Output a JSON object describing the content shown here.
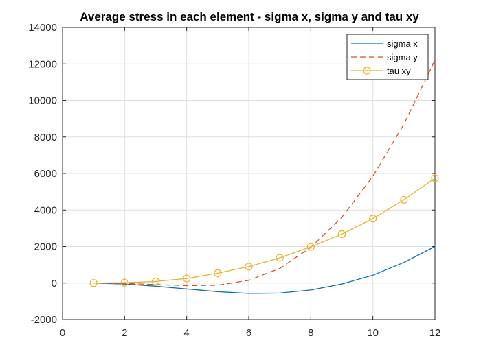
{
  "chart_data": {
    "type": "line",
    "title": "Average stress in each element - sigma x, sigma y and tau xy",
    "xlabel": "",
    "ylabel": "",
    "xlim": [
      0,
      12
    ],
    "ylim": [
      -2000,
      14000
    ],
    "xticks": [
      0,
      2,
      4,
      6,
      8,
      10,
      12
    ],
    "yticks": [
      -2000,
      0,
      2000,
      4000,
      6000,
      8000,
      10000,
      12000,
      14000
    ],
    "xtick_labels": [
      "0",
      "2",
      "4",
      "6",
      "8",
      "10",
      "12"
    ],
    "ytick_labels": [
      "-2000",
      "0",
      "2000",
      "4000",
      "6000",
      "8000",
      "10000",
      "12000",
      "14000"
    ],
    "grid": true,
    "legend_position": "top-right",
    "x": [
      1,
      2,
      3,
      4,
      5,
      6,
      7,
      8,
      9,
      10,
      11,
      12
    ],
    "series": [
      {
        "name": "sigma x",
        "color": "#0072BD",
        "line_style": "solid",
        "marker": "none",
        "values": [
          0,
          -50,
          -170,
          -320,
          -470,
          -570,
          -550,
          -380,
          -50,
          430,
          1130,
          2000
        ]
      },
      {
        "name": "sigma y",
        "color": "#D95319",
        "line_style": "dashed",
        "marker": "none",
        "values": [
          0,
          -20,
          -80,
          -140,
          -120,
          150,
          800,
          1950,
          3600,
          5850,
          8700,
          12200
        ]
      },
      {
        "name": "tau xy",
        "color": "#EDB120",
        "line_style": "solid",
        "marker": "circle",
        "values": [
          0,
          20,
          90,
          250,
          540,
          900,
          1380,
          1980,
          2680,
          3530,
          4560,
          5740
        ]
      }
    ]
  }
}
